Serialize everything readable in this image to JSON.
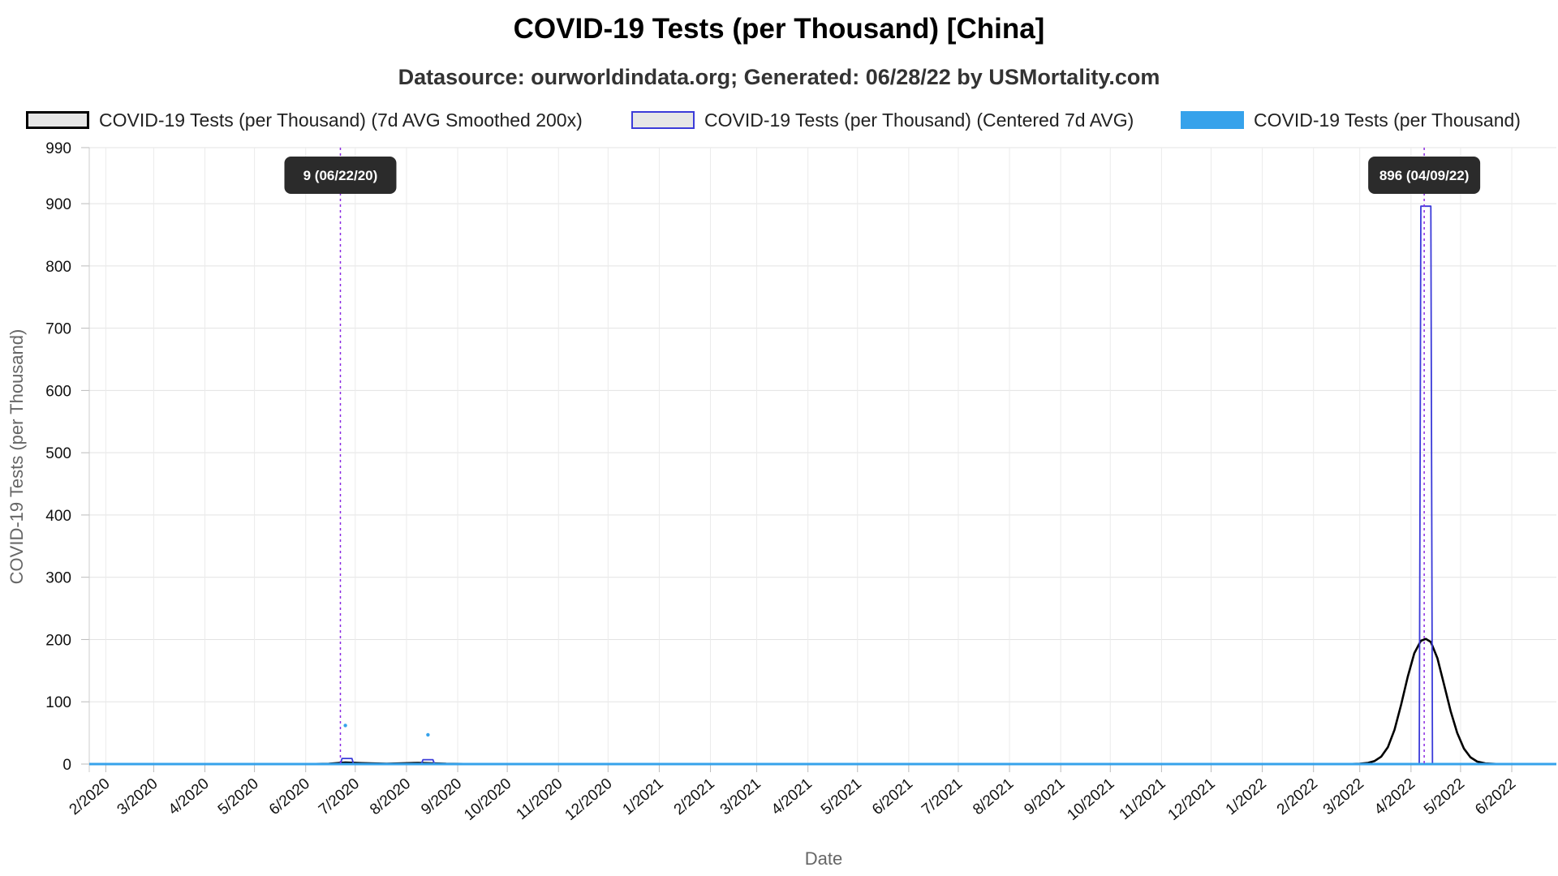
{
  "chart_data": {
    "type": "line",
    "title": "COVID-19 Tests (per Thousand) [China]",
    "subtitle": "Datasource: ourworldindata.org; Generated: 06/28/22 by USMortality.com",
    "xlabel": "Date",
    "ylabel": "COVID-19 Tests (per Thousand)",
    "ylim": [
      0,
      990
    ],
    "yticks": [
      0,
      100,
      200,
      300,
      400,
      500,
      600,
      700,
      800,
      900,
      990
    ],
    "xlim": [
      "2020-01-22",
      "2022-06-28"
    ],
    "xticks": [
      {
        "date": "2020-02-01",
        "label": "2/2020"
      },
      {
        "date": "2020-03-01",
        "label": "3/2020"
      },
      {
        "date": "2020-04-01",
        "label": "4/2020"
      },
      {
        "date": "2020-05-01",
        "label": "5/2020"
      },
      {
        "date": "2020-06-01",
        "label": "6/2020"
      },
      {
        "date": "2020-07-01",
        "label": "7/2020"
      },
      {
        "date": "2020-08-01",
        "label": "8/2020"
      },
      {
        "date": "2020-09-01",
        "label": "9/2020"
      },
      {
        "date": "2020-10-01",
        "label": "10/2020"
      },
      {
        "date": "2020-11-01",
        "label": "11/2020"
      },
      {
        "date": "2020-12-01",
        "label": "12/2020"
      },
      {
        "date": "2021-01-01",
        "label": "1/2021"
      },
      {
        "date": "2021-02-01",
        "label": "2/2021"
      },
      {
        "date": "2021-03-01",
        "label": "3/2021"
      },
      {
        "date": "2021-04-01",
        "label": "4/2021"
      },
      {
        "date": "2021-05-01",
        "label": "5/2021"
      },
      {
        "date": "2021-06-01",
        "label": "6/2021"
      },
      {
        "date": "2021-07-01",
        "label": "7/2021"
      },
      {
        "date": "2021-08-01",
        "label": "8/2021"
      },
      {
        "date": "2021-09-01",
        "label": "9/2021"
      },
      {
        "date": "2021-10-01",
        "label": "10/2021"
      },
      {
        "date": "2021-11-01",
        "label": "11/2021"
      },
      {
        "date": "2021-12-01",
        "label": "12/2021"
      },
      {
        "date": "2022-01-01",
        "label": "1/2022"
      },
      {
        "date": "2022-02-01",
        "label": "2/2022"
      },
      {
        "date": "2022-03-01",
        "label": "3/2022"
      },
      {
        "date": "2022-04-01",
        "label": "4/2022"
      },
      {
        "date": "2022-05-01",
        "label": "5/2022"
      },
      {
        "date": "2022-06-01",
        "label": "6/2022"
      }
    ],
    "grid": true,
    "legend_position": "top",
    "series": [
      {
        "name": "COVID-19 Tests (per Thousand) (7d AVG Smoothed 200x)",
        "style": "line",
        "color": "#000000",
        "points": [
          [
            "2020-01-22",
            0
          ],
          [
            "2020-06-01",
            0
          ],
          [
            "2020-06-15",
            0.5
          ],
          [
            "2020-06-25",
            2.5
          ],
          [
            "2020-07-05",
            1.5
          ],
          [
            "2020-07-20",
            0.5
          ],
          [
            "2020-08-08",
            2
          ],
          [
            "2020-08-25",
            0.5
          ],
          [
            "2020-09-15",
            0
          ],
          [
            "2022-02-20",
            0
          ],
          [
            "2022-03-01",
            0.5
          ],
          [
            "2022-03-06",
            2
          ],
          [
            "2022-03-10",
            5
          ],
          [
            "2022-03-14",
            12
          ],
          [
            "2022-03-18",
            27
          ],
          [
            "2022-03-22",
            55
          ],
          [
            "2022-03-26",
            95
          ],
          [
            "2022-03-30",
            140
          ],
          [
            "2022-04-03",
            178
          ],
          [
            "2022-04-07",
            198
          ],
          [
            "2022-04-10",
            201
          ],
          [
            "2022-04-13",
            196
          ],
          [
            "2022-04-17",
            170
          ],
          [
            "2022-04-21",
            128
          ],
          [
            "2022-04-25",
            85
          ],
          [
            "2022-04-29",
            50
          ],
          [
            "2022-05-03",
            25
          ],
          [
            "2022-05-07",
            11
          ],
          [
            "2022-05-11",
            4
          ],
          [
            "2022-05-16",
            1
          ],
          [
            "2022-05-25",
            0
          ],
          [
            "2022-06-28",
            0
          ]
        ]
      },
      {
        "name": "COVID-19 Tests (per Thousand) (Centered 7d AVG)",
        "style": "step",
        "color": "#3b3bd9",
        "points": [
          [
            "2020-01-22",
            0
          ],
          [
            "2020-06-22",
            0
          ],
          [
            "2020-06-23",
            9
          ],
          [
            "2020-06-29",
            9
          ],
          [
            "2020-06-30",
            0
          ],
          [
            "2020-08-10",
            0
          ],
          [
            "2020-08-11",
            7
          ],
          [
            "2020-08-17",
            7
          ],
          [
            "2020-08-18",
            0
          ],
          [
            "2022-04-06",
            0
          ],
          [
            "2022-04-07",
            896
          ],
          [
            "2022-04-13",
            896
          ],
          [
            "2022-04-14",
            0
          ],
          [
            "2022-06-28",
            0
          ]
        ]
      },
      {
        "name": "COVID-19 Tests (per Thousand)",
        "style": "points",
        "color": "#36a2eb",
        "points": [
          [
            "2020-01-22",
            0
          ],
          [
            "2020-06-25",
            62
          ],
          [
            "2020-08-14",
            47
          ],
          [
            "2022-06-28",
            0
          ]
        ]
      }
    ],
    "markers": [
      {
        "date": "2020-06-22",
        "label": "9 (06/22/20)"
      },
      {
        "date": "2022-04-09",
        "label": "896 (04/09/22)"
      }
    ]
  }
}
